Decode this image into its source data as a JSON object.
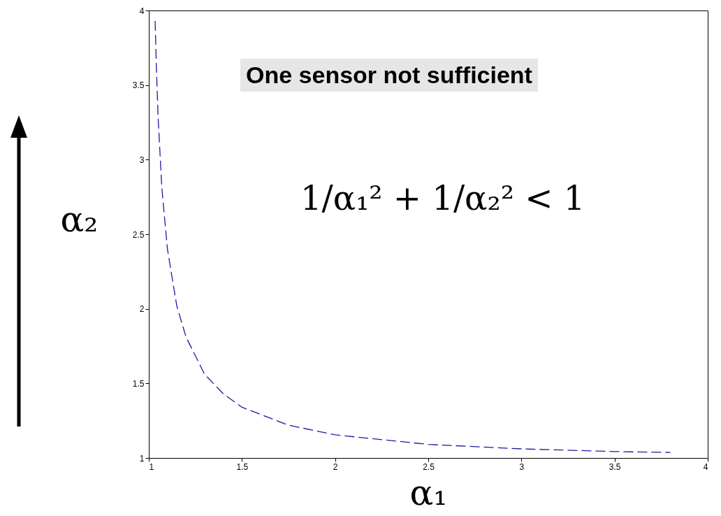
{
  "chart_data": {
    "type": "line",
    "xlabel": "α₁",
    "ylabel": "α₂",
    "x": [
      1.034,
      1.04,
      1.05,
      1.07,
      1.1,
      1.15,
      1.2,
      1.3,
      1.4,
      1.5,
      1.75,
      2,
      2.5,
      3,
      3.5,
      3.8
    ],
    "series": [
      {
        "color": "#1a1aa0",
        "values": [
          3.93,
          3.64,
          3.28,
          2.81,
          2.4,
          2.02,
          1.81,
          1.56,
          1.43,
          1.34,
          1.22,
          1.155,
          1.091,
          1.061,
          1.043,
          1.037
        ]
      }
    ],
    "xlim": [
      1,
      4
    ],
    "ylim": [
      1,
      4
    ],
    "xticks": [
      1,
      1.5,
      2,
      2.5,
      3,
      3.5,
      4
    ],
    "yticks": [
      1,
      1.5,
      2,
      2.5,
      3,
      3.5,
      4
    ],
    "line_style": "dashed",
    "grid": false,
    "annotations": [
      "One sensor not sufficient",
      "1/α₁² + 1/α₂² < 1"
    ]
  }
}
